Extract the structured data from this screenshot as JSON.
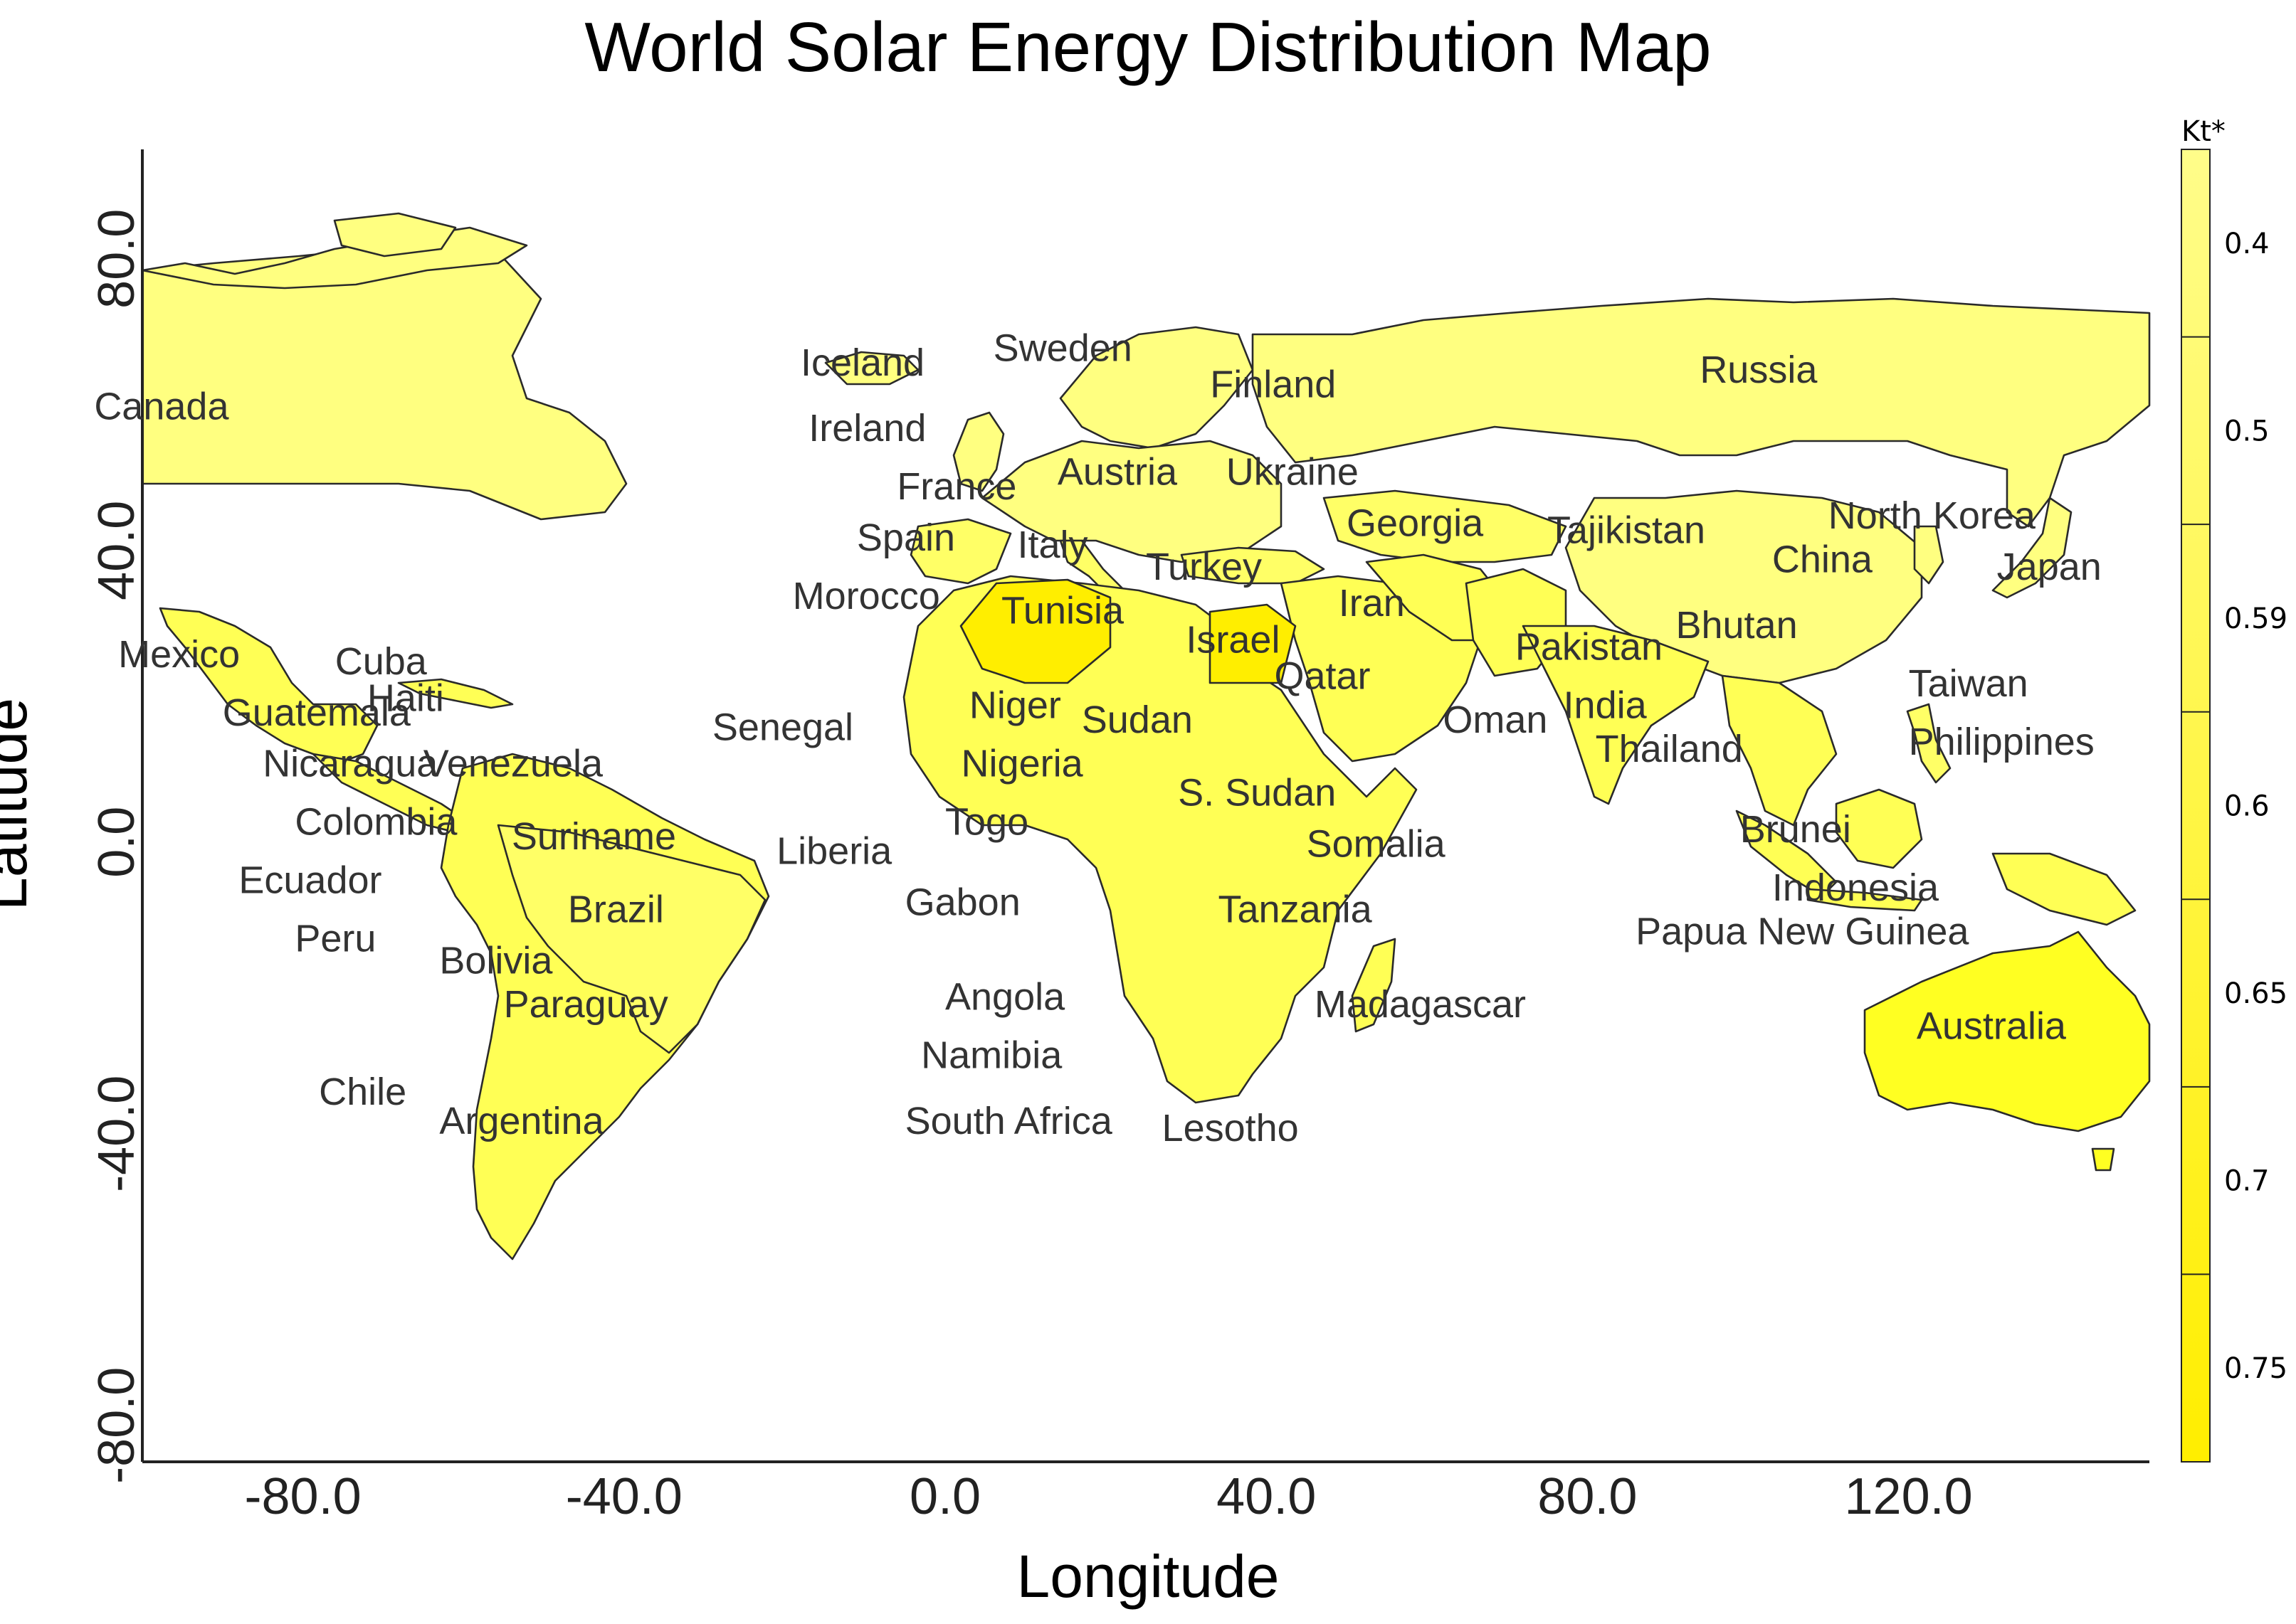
{
  "title": "World Solar Energy Distribution Map",
  "xlabel": "Longitude",
  "ylabel": "Latitude",
  "x_ticks": [
    "-80.0",
    "-40.0",
    "0.0",
    "40.0",
    "80.0",
    "120.0"
  ],
  "y_ticks": [
    "80.0",
    "40.0",
    "0.0",
    "-40.0",
    "-80.0"
  ],
  "legend": {
    "title": "Kt*",
    "labels": [
      "0.4",
      "0.5",
      "0.59",
      "0.6",
      "0.65",
      "0.7",
      "0.75"
    ],
    "color_low": "#fffd8a",
    "color_high": "#ffee00"
  },
  "colors": {
    "light": "#ffff80",
    "mid": "#ffff55",
    "strong": "#ffff33",
    "deep": "#f8ee00"
  },
  "chart_data": {
    "type": "choropleth",
    "title": "World Solar Energy Distribution Map",
    "xlabel": "Longitude",
    "ylabel": "Latitude",
    "xlim": [
      -100,
      150
    ],
    "ylim": [
      -85,
      95
    ],
    "legend_title": "Kt*",
    "countries": [
      {
        "name": "Canada",
        "lon": -106,
        "lat": 58
      },
      {
        "name": "Mexico",
        "lon": -103,
        "lat": 24
      },
      {
        "name": "Guatemala",
        "lon": -90,
        "lat": 16
      },
      {
        "name": "Nicaragua",
        "lon": -85,
        "lat": 9
      },
      {
        "name": "Cuba",
        "lon": -76,
        "lat": 23
      },
      {
        "name": "Haiti",
        "lon": -72,
        "lat": 18
      },
      {
        "name": "Venezuela",
        "lon": -65,
        "lat": 9
      },
      {
        "name": "Colombia",
        "lon": -81,
        "lat": 1
      },
      {
        "name": "Suriname",
        "lon": -54,
        "lat": -1
      },
      {
        "name": "Ecuador",
        "lon": -88,
        "lat": -7
      },
      {
        "name": "Brazil",
        "lon": -47,
        "lat": -11
      },
      {
        "name": "Peru",
        "lon": -81,
        "lat": -15
      },
      {
        "name": "Bolivia",
        "lon": -63,
        "lat": -18
      },
      {
        "name": "Paraguay",
        "lon": -55,
        "lat": -24
      },
      {
        "name": "Chile",
        "lon": -78,
        "lat": -36
      },
      {
        "name": "Argentina",
        "lon": -63,
        "lat": -40
      },
      {
        "name": "Iceland",
        "lon": -18,
        "lat": 64
      },
      {
        "name": "Ireland",
        "lon": -17,
        "lat": 55
      },
      {
        "name": "Sweden",
        "lon": 6,
        "lat": 66
      },
      {
        "name": "Finland",
        "lon": 33,
        "lat": 61
      },
      {
        "name": "France",
        "lon": -6,
        "lat": 47
      },
      {
        "name": "Austria",
        "lon": 14,
        "lat": 49
      },
      {
        "name": "Ukraine",
        "lon": 35,
        "lat": 49
      },
      {
        "name": "Spain",
        "lon": -11,
        "lat": 40
      },
      {
        "name": "Italy",
        "lon": 9,
        "lat": 39
      },
      {
        "name": "Turkey",
        "lon": 25,
        "lat": 36
      },
      {
        "name": "Georgia",
        "lon": 50,
        "lat": 42
      },
      {
        "name": "Morocco",
        "lon": -19,
        "lat": 32
      },
      {
        "name": "Tunisia",
        "lon": 7,
        "lat": 30
      },
      {
        "name": "Israel",
        "lon": 30,
        "lat": 26
      },
      {
        "name": "Iran",
        "lon": 49,
        "lat": 31
      },
      {
        "name": "Qatar",
        "lon": 41,
        "lat": 21
      },
      {
        "name": "Oman",
        "lon": 62,
        "lat": 15
      },
      {
        "name": "Pakistan",
        "lon": 71,
        "lat": 25
      },
      {
        "name": "India",
        "lon": 77,
        "lat": 17
      },
      {
        "name": "Tajikistan",
        "lon": 75,
        "lat": 41
      },
      {
        "name": "Russia",
        "lon": 94,
        "lat": 63
      },
      {
        "name": "North Korea",
        "lon": 110,
        "lat": 43
      },
      {
        "name": "China",
        "lon": 103,
        "lat": 37
      },
      {
        "name": "Japan",
        "lon": 131,
        "lat": 36
      },
      {
        "name": "Bhutan",
        "lon": 91,
        "lat": 28
      },
      {
        "name": "Taiwan",
        "lon": 120,
        "lat": 20
      },
      {
        "name": "Thailand",
        "lon": 81,
        "lat": 11
      },
      {
        "name": "Philippines",
        "lon": 120,
        "lat": 12
      },
      {
        "name": "Brunei",
        "lon": 99,
        "lat": 0
      },
      {
        "name": "Indonesia",
        "lon": 103,
        "lat": -8
      },
      {
        "name": "Papua New Guinea",
        "lon": 86,
        "lat": -14
      },
      {
        "name": "Australia",
        "lon": 121,
        "lat": -27
      },
      {
        "name": "Senegal",
        "lon": -29,
        "lat": 14
      },
      {
        "name": "Liberia",
        "lon": -21,
        "lat": -3
      },
      {
        "name": "Niger",
        "lon": 3,
        "lat": 17
      },
      {
        "name": "Nigeria",
        "lon": 2,
        "lat": 9
      },
      {
        "name": "Togo",
        "lon": 0,
        "lat": 1
      },
      {
        "name": "Sudan",
        "lon": 17,
        "lat": 15
      },
      {
        "name": "S. Sudan",
        "lon": 29,
        "lat": 5
      },
      {
        "name": "Somalia",
        "lon": 45,
        "lat": -2
      },
      {
        "name": "Gabon",
        "lon": -5,
        "lat": -10
      },
      {
        "name": "Tanzania",
        "lon": 34,
        "lat": -11
      },
      {
        "name": "Angola",
        "lon": 0,
        "lat": -23
      },
      {
        "name": "Madagascar",
        "lon": 46,
        "lat": -24
      },
      {
        "name": "Namibia",
        "lon": -3,
        "lat": -31
      },
      {
        "name": "South Africa",
        "lon": -5,
        "lat": -40
      },
      {
        "name": "Lesotho",
        "lon": 27,
        "lat": -41
      }
    ]
  }
}
